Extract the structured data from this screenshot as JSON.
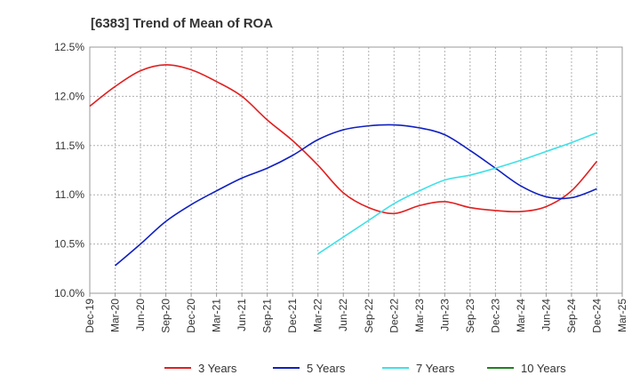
{
  "chart_data": {
    "type": "line",
    "title": "[6383]  Trend of Mean of ROA",
    "xlabel": "",
    "ylabel": "",
    "ylim": [
      10.0,
      12.5
    ],
    "grid": true,
    "legend_placement": "bottom",
    "y_ticks": [
      "10.0%",
      "10.5%",
      "11.0%",
      "11.5%",
      "12.0%",
      "12.5%"
    ],
    "x_ticks": [
      "Dec-19",
      "Mar-20",
      "Jun-20",
      "Sep-20",
      "Dec-20",
      "Mar-21",
      "Jun-21",
      "Sep-21",
      "Dec-21",
      "Mar-22",
      "Jun-22",
      "Sep-22",
      "Dec-22",
      "Mar-23",
      "Jun-23",
      "Sep-23",
      "Dec-23",
      "Mar-24",
      "Jun-24",
      "Sep-24",
      "Dec-24",
      "Mar-25"
    ],
    "series": [
      {
        "name": "3 Years",
        "color": "#e02020",
        "start_index": 0,
        "values": [
          11.9,
          12.1,
          12.26,
          12.32,
          12.27,
          12.15,
          12.0,
          11.76,
          11.55,
          11.3,
          11.02,
          10.87,
          10.81,
          10.89,
          10.93,
          10.87,
          10.84,
          10.83,
          10.88,
          11.04,
          11.34
        ]
      },
      {
        "name": "5 Years",
        "color": "#1020c0",
        "start_index": 1,
        "values": [
          10.28,
          10.5,
          10.73,
          10.9,
          11.04,
          11.17,
          11.27,
          11.4,
          11.56,
          11.66,
          11.7,
          11.71,
          11.68,
          11.61,
          11.45,
          11.27,
          11.09,
          10.98,
          10.97,
          11.06
        ]
      },
      {
        "name": "7 Years",
        "color": "#40e0e8",
        "start_index": 9,
        "values": [
          10.4,
          10.57,
          10.74,
          10.91,
          11.04,
          11.15,
          11.2,
          11.27,
          11.35,
          11.44,
          11.53,
          11.63
        ]
      },
      {
        "name": "10 Years",
        "color": "#208020",
        "start_index": 0,
        "values": []
      }
    ]
  }
}
